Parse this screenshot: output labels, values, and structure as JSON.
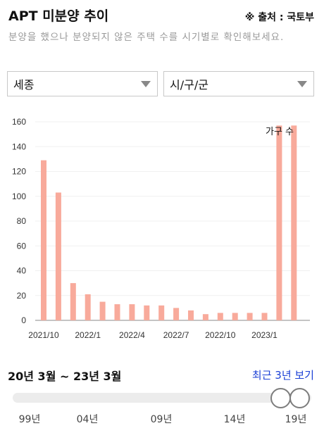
{
  "header": {
    "title": "APT 미분양 추이",
    "source": "※ 출처 : 국토부",
    "subtitle": "분양을 했으나 분양되지 않은 주택 수를 시기별로 확인해보세요."
  },
  "filters": {
    "region": "세종",
    "subregion": "시/구/군"
  },
  "chart_data": {
    "type": "bar",
    "series": [
      {
        "name": "가구 수",
        "color": "#f8aa9b",
        "values": [
          129,
          103,
          30,
          21,
          15,
          13,
          13,
          12,
          12,
          10,
          8,
          5,
          6,
          6,
          6,
          6,
          157,
          157
        ]
      }
    ],
    "categories": [
      "2021/10",
      "2021/11",
      "2021/12",
      "2022/1",
      "2022/2",
      "2022/3",
      "2022/4",
      "2022/5",
      "2022/6",
      "2022/7",
      "2022/8",
      "2022/9",
      "2022/10",
      "2022/11",
      "2022/12",
      "2023/1",
      "2023/2",
      "2023/3"
    ],
    "xtick_labels": [
      "2021/10",
      "2022/1",
      "2022/4",
      "2022/7",
      "2022/10",
      "2023/1"
    ],
    "ylim": [
      0,
      160
    ],
    "yticks": [
      0,
      20,
      40,
      60,
      80,
      100,
      120,
      140,
      160
    ],
    "grid": true,
    "legend": "top-right"
  },
  "range": {
    "label": "20년 3월 ~ 23년 3월",
    "recent_link": "최근 3년 보기",
    "ticks": [
      "99년",
      "04년",
      "09년",
      "14년",
      "19년"
    ]
  }
}
